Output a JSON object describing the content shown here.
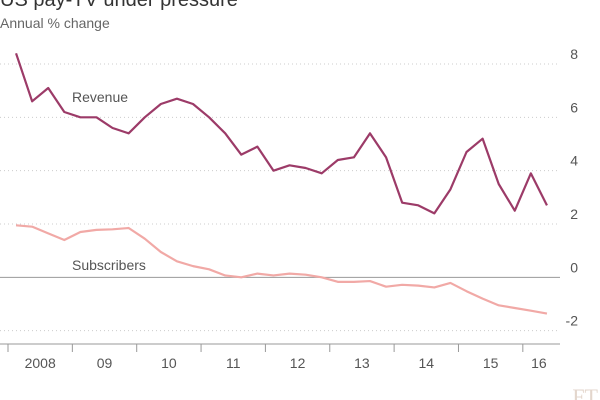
{
  "chart_data": {
    "type": "line",
    "title": "US pay-TV under pressure",
    "subtitle": "Annual % change",
    "logo": "FT",
    "x": [
      2008.125,
      2008.375,
      2008.625,
      2008.875,
      2009.125,
      2009.375,
      2009.625,
      2009.875,
      2010.125,
      2010.375,
      2010.625,
      2010.875,
      2011.125,
      2011.375,
      2011.625,
      2011.875,
      2012.125,
      2012.375,
      2012.625,
      2012.875,
      2013.125,
      2013.375,
      2013.625,
      2013.875,
      2014.125,
      2014.375,
      2014.625,
      2014.875,
      2015.125,
      2015.375,
      2015.625,
      2015.875,
      2016.125,
      2016.375
    ],
    "series": [
      {
        "name": "Revenue",
        "color": "#9c3b68",
        "values": [
          8.4,
          6.6,
          7.1,
          6.2,
          6.0,
          6.0,
          5.6,
          5.4,
          6.0,
          6.5,
          6.7,
          6.5,
          6.0,
          5.4,
          4.6,
          4.9,
          4.0,
          4.2,
          4.1,
          3.9,
          4.4,
          4.5,
          5.4,
          4.5,
          2.8,
          2.7,
          2.4,
          3.3,
          4.7,
          5.2,
          3.5,
          2.5,
          3.9,
          2.7
        ]
      },
      {
        "name": "Subscribers",
        "color": "#f1a9a6",
        "values": [
          1.95,
          1.9,
          1.65,
          1.4,
          1.7,
          1.78,
          1.8,
          1.85,
          1.45,
          0.95,
          0.6,
          0.42,
          0.3,
          0.07,
          0.0,
          0.14,
          0.07,
          0.14,
          0.1,
          0.0,
          -0.17,
          -0.17,
          -0.14,
          -0.35,
          -0.28,
          -0.31,
          -0.38,
          -0.21,
          -0.52,
          -0.8,
          -1.05,
          -1.15,
          -1.25,
          -1.36
        ]
      }
    ],
    "xlim": [
      2008,
      2016.5
    ],
    "xticks": [
      {
        "value": 2008,
        "label": "2008"
      },
      {
        "value": 2009,
        "label": "09"
      },
      {
        "value": 2010,
        "label": "10"
      },
      {
        "value": 2011,
        "label": "11"
      },
      {
        "value": 2012,
        "label": "12"
      },
      {
        "value": 2013,
        "label": "13"
      },
      {
        "value": 2014,
        "label": "14"
      },
      {
        "value": 2015,
        "label": "15"
      },
      {
        "value": 2016,
        "label": "16"
      }
    ],
    "ylim": [
      -2.5,
      8.6
    ],
    "yticks": [
      -2,
      0,
      2,
      4,
      6,
      8
    ],
    "grid": true
  }
}
